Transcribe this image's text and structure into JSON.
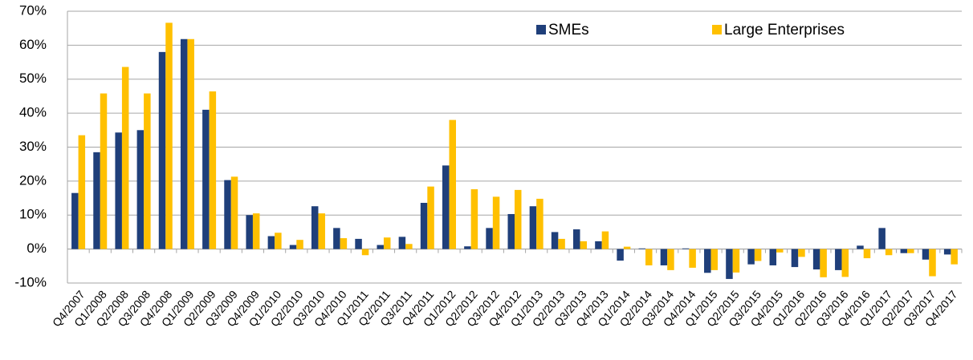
{
  "chart_data": {
    "type": "bar",
    "categories": [
      "Q4/2007",
      "Q1/2008",
      "Q2/2008",
      "Q3/2008",
      "Q4/2008",
      "Q1/2009",
      "Q2/2009",
      "Q3/2009",
      "Q4/2009",
      "Q1/2010",
      "Q2/2010",
      "Q3/2010",
      "Q4/2010",
      "Q1/2011",
      "Q2/2011",
      "Q3/2011",
      "Q4/2011",
      "Q1/2012",
      "Q2/2012",
      "Q3/2012",
      "Q4/2012",
      "Q1/2013",
      "Q2/2013",
      "Q3/2013",
      "Q4/2013",
      "Q1/2014",
      "Q2/2014",
      "Q3/2014",
      "Q4/2014",
      "Q1/2015",
      "Q2/2015",
      "Q3/2015",
      "Q4/2015",
      "Q1/2016",
      "Q2/2016",
      "Q3/2016",
      "Q4/2016",
      "Q1/2017",
      "Q2/2017",
      "Q3/2017",
      "Q4/2017"
    ],
    "series": [
      {
        "name": "SMEs",
        "color": "#1f3f7a",
        "values": [
          16.5,
          28.5,
          34.3,
          35,
          58,
          61.8,
          41,
          20.3,
          10,
          3.8,
          1.2,
          12.6,
          6.2,
          3,
          1.2,
          3.6,
          13.6,
          24.6,
          0.8,
          6.2,
          10.3,
          12.6,
          5,
          5.8,
          2.3,
          -3.4,
          0.2,
          -4.8,
          0.2,
          -7,
          -8.8,
          -4.5,
          -4.8,
          -5.3,
          -6,
          -6.2,
          1,
          6.2,
          -1.2,
          -3.1,
          -1.6
        ]
      },
      {
        "name": "Large Enterprises",
        "color": "#ffc000",
        "values": [
          33.5,
          45.8,
          53.6,
          45.8,
          66.6,
          61.8,
          46.4,
          21.3,
          10.5,
          4.8,
          2.7,
          10.5,
          3.2,
          -1.8,
          3.4,
          1.5,
          18.4,
          38,
          17.6,
          15.4,
          17.4,
          14.8,
          3,
          2.3,
          5.2,
          0.7,
          -4.8,
          -6.2,
          -5.5,
          -6.2,
          -6.9,
          -3.5,
          -1,
          -2.3,
          -8.3,
          -8.2,
          -2.7,
          -1.8,
          -1.2,
          -8,
          -4.5
        ]
      }
    ],
    "ylim": [
      -10,
      70
    ],
    "yticks": [
      {
        "value": -10,
        "label": "-10%"
      },
      {
        "value": 0,
        "label": "0%"
      },
      {
        "value": 10,
        "label": "10%"
      },
      {
        "value": 20,
        "label": "20%"
      },
      {
        "value": 30,
        "label": "30%"
      },
      {
        "value": 40,
        "label": "40%"
      },
      {
        "value": 50,
        "label": "50%"
      },
      {
        "value": 60,
        "label": "60%"
      },
      {
        "value": 70,
        "label": "70%"
      }
    ],
    "grid": true,
    "legend": "top"
  }
}
